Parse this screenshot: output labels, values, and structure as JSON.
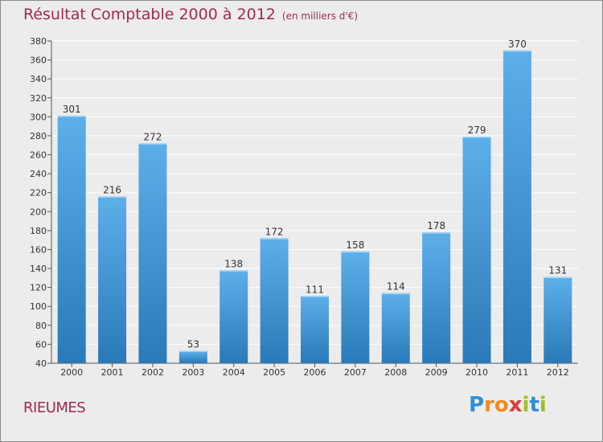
{
  "title": "Résultat Comptable 2000 à 2012",
  "unit": "(en milliers d'€)",
  "commune": "RIEUMES",
  "logo": {
    "letters": [
      "P",
      "r",
      "o",
      "x",
      "i",
      "t",
      "i"
    ],
    "colors": [
      "#2f8fd6",
      "#f08a1f",
      "#f08a1f",
      "#e03a3a",
      "#9bc02a",
      "#2f8fd6",
      "#9bc02a"
    ]
  },
  "colors": {
    "bar_top": "#5dafea",
    "bar_bottom": "#2a79b8",
    "grid": "#ffffff",
    "background": "#ececec"
  },
  "chart_data": {
    "type": "bar",
    "title": "Résultat Comptable 2000 à 2012",
    "categories": [
      "2000",
      "2001",
      "2002",
      "2003",
      "2004",
      "2005",
      "2006",
      "2007",
      "2008",
      "2009",
      "2010",
      "2011",
      "2012"
    ],
    "values": [
      301,
      216,
      272,
      53,
      138,
      172,
      111,
      158,
      114,
      178,
      279,
      370,
      131
    ],
    "ylim": [
      40,
      380
    ],
    "yticks": [
      40,
      60,
      80,
      100,
      120,
      140,
      160,
      180,
      200,
      220,
      240,
      260,
      280,
      300,
      320,
      340,
      360,
      380
    ],
    "grid": true,
    "xlabel": "",
    "ylabel": ""
  }
}
